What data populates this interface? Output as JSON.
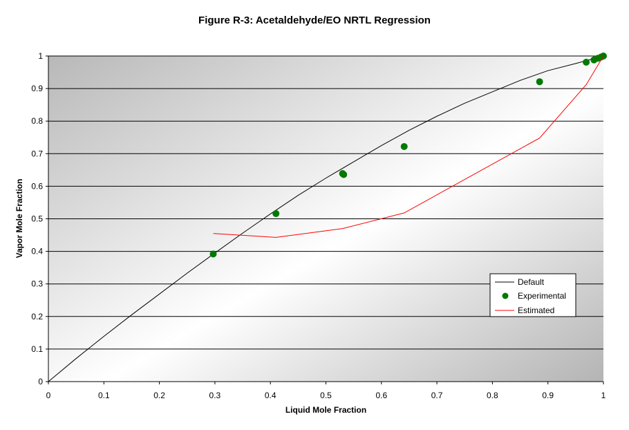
{
  "chart_data": {
    "type": "line",
    "title": "Figure R-3:  Acetaldehyde/EO NRTL Regression",
    "xlabel": "Liquid Mole Fraction",
    "ylabel": "Vapor Mole Fraction",
    "xlim": [
      0,
      1
    ],
    "ylim": [
      0,
      1
    ],
    "x_ticks": [
      "0",
      "0.1",
      "0.2",
      "0.3",
      "0.4",
      "0.5",
      "0.6",
      "0.7",
      "0.8",
      "0.9",
      "1"
    ],
    "y_ticks": [
      "0",
      "0.1",
      "0.2",
      "0.3",
      "0.4",
      "0.5",
      "0.6",
      "0.7",
      "0.8",
      "0.9",
      "1"
    ],
    "grid": "horizontal",
    "legend_position": "right",
    "series": [
      {
        "name": "Default",
        "kind": "line",
        "color": "#000000",
        "x": [
          0,
          0.05,
          0.1,
          0.15,
          0.2,
          0.25,
          0.3,
          0.35,
          0.4,
          0.45,
          0.5,
          0.55,
          0.6,
          0.65,
          0.7,
          0.75,
          0.8,
          0.85,
          0.9,
          0.95,
          1.0
        ],
        "y": [
          0,
          0.071,
          0.139,
          0.205,
          0.269,
          0.333,
          0.395,
          0.456,
          0.515,
          0.572,
          0.625,
          0.675,
          0.725,
          0.772,
          0.815,
          0.855,
          0.89,
          0.925,
          0.955,
          0.977,
          1.0
        ]
      },
      {
        "name": "Experimental",
        "kind": "scatter",
        "color": "#007a00",
        "x": [
          0.297,
          0.41,
          0.53,
          0.532,
          0.641,
          0.885,
          0.969,
          0.983,
          0.99,
          0.996,
          1.0
        ],
        "y": [
          0.392,
          0.516,
          0.639,
          0.636,
          0.722,
          0.921,
          0.981,
          0.988,
          0.993,
          0.997,
          1.0
        ]
      },
      {
        "name": "Estimated",
        "kind": "line",
        "color": "#ff0000",
        "x": [
          0.297,
          0.41,
          0.53,
          0.641,
          0.885,
          0.969,
          1.0
        ],
        "y": [
          0.455,
          0.443,
          0.47,
          0.518,
          0.748,
          0.912,
          1.0
        ]
      }
    ]
  }
}
